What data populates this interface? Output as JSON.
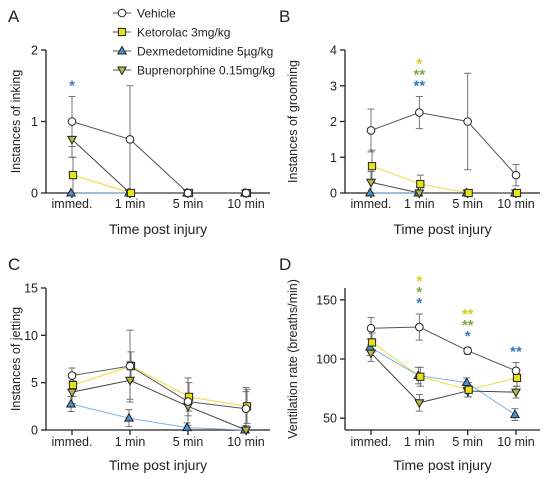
{
  "colors": {
    "vehicle": "#ffffff",
    "ketorolac": "#e8e21a",
    "dexmedetomidine": "#4a8fcc",
    "buprenorphine": "#b5b548",
    "star_yellow": "#d8d11c",
    "star_green": "#7fa641",
    "star_blue": "#3a78c0",
    "axis": "#222222",
    "error": "#666666"
  },
  "legend": [
    {
      "label": "Vehicle",
      "marker": "circle",
      "color": "#ffffff"
    },
    {
      "label": "Ketorolac 3mg/kg",
      "marker": "square",
      "color": "#e8e21a"
    },
    {
      "label": "Dexmedetomidine 5µg/kg",
      "marker": "triangle-up",
      "color": "#4a8fcc"
    },
    {
      "label": "Buprenorphine 0.15mg/kg",
      "marker": "triangle-down",
      "color": "#b5b548"
    }
  ],
  "chart_data": [
    {
      "panel": "A",
      "type": "line",
      "ylabel": "Instances of inking",
      "xlabel": "Time post injury",
      "categories": [
        "immed.",
        "1 min",
        "5 min",
        "10 min"
      ],
      "ylim": [
        0,
        2
      ],
      "yticks": [
        "0",
        "1",
        "2"
      ],
      "series": [
        {
          "name": "Vehicle",
          "values": [
            1.0,
            0.75,
            0,
            0
          ],
          "err": [
            0.35,
            0.75,
            0,
            0
          ]
        },
        {
          "name": "Ketorolac 3mg/kg",
          "values": [
            0.25,
            0,
            0,
            0
          ],
          "err": [
            0.25,
            0,
            0,
            0
          ]
        },
        {
          "name": "Dexmedetomidine 5µg/kg",
          "values": [
            0,
            0,
            0,
            0
          ],
          "err": [
            0,
            0,
            0,
            0
          ]
        },
        {
          "name": "Buprenorphine 0.15mg/kg",
          "values": [
            0.75,
            0,
            0,
            0
          ],
          "err": [
            0.25,
            0,
            0,
            0
          ]
        }
      ],
      "annotations": [
        {
          "category": "immed.",
          "stars": [
            {
              "text": "*",
              "color": "#3a78c0"
            }
          ]
        }
      ]
    },
    {
      "panel": "B",
      "type": "line",
      "ylabel": "Instances of grooming",
      "xlabel": "Time post injury",
      "categories": [
        "immed.",
        "1 min",
        "5 min",
        "10 min"
      ],
      "ylim": [
        0,
        4
      ],
      "yticks": [
        "0",
        "1",
        "2",
        "3",
        "4"
      ],
      "series": [
        {
          "name": "Vehicle",
          "values": [
            1.75,
            2.25,
            2.0,
            0.5
          ],
          "err": [
            0.6,
            0.45,
            1.35,
            0.3
          ]
        },
        {
          "name": "Ketorolac 3mg/kg",
          "values": [
            0.75,
            0.25,
            0,
            0
          ],
          "err": [
            0.45,
            0.25,
            0,
            0
          ]
        },
        {
          "name": "Dexmedetomidine 5µg/kg",
          "values": [
            0,
            0,
            0,
            0
          ],
          "err": [
            0,
            0,
            0,
            0
          ]
        },
        {
          "name": "Buprenorphine 0.15mg/kg",
          "values": [
            0.3,
            0,
            0,
            0
          ],
          "err": [
            0.3,
            0,
            0,
            0
          ]
        }
      ],
      "annotations": [
        {
          "category": "1 min",
          "stars": [
            {
              "text": "*",
              "color": "#d8d11c"
            },
            {
              "text": "**",
              "color": "#7fa641"
            },
            {
              "text": "**",
              "color": "#3a78c0"
            }
          ]
        }
      ]
    },
    {
      "panel": "C",
      "type": "line",
      "ylabel": "Instances of jetting",
      "xlabel": "Time post injury",
      "categories": [
        "immed.",
        "1 min",
        "5 min",
        "10 min"
      ],
      "ylim": [
        0,
        15
      ],
      "yticks": [
        "0",
        "5",
        "10",
        "15"
      ],
      "series": [
        {
          "name": "Vehicle",
          "values": [
            5.75,
            6.75,
            3.0,
            2.25
          ],
          "err": [
            0.8,
            3.8,
            2.5,
            1.8
          ]
        },
        {
          "name": "Ketorolac 3mg/kg",
          "values": [
            4.75,
            6.75,
            3.5,
            2.5
          ],
          "err": [
            1.2,
            1.5,
            1.5,
            1.8
          ]
        },
        {
          "name": "Dexmedetomidine 5µg/kg",
          "values": [
            2.75,
            1.25,
            0.25,
            0
          ],
          "err": [
            0.8,
            0.9,
            0.5,
            0
          ]
        },
        {
          "name": "Buprenorphine 0.15mg/kg",
          "values": [
            4.0,
            5.25,
            2.5,
            0
          ],
          "err": [
            1.2,
            2.0,
            1.0,
            4.5
          ]
        }
      ],
      "annotations": []
    },
    {
      "panel": "D",
      "type": "line",
      "ylabel": "Ventilation rate (breaths/min)",
      "xlabel": "Time post injury",
      "categories": [
        "immed.",
        "1 min",
        "5 min",
        "10 min"
      ],
      "ylim": [
        40,
        160
      ],
      "yticks": [
        "50",
        "100",
        "150"
      ],
      "series": [
        {
          "name": "Vehicle",
          "values": [
            126,
            127,
            107,
            90
          ],
          "err": [
            9,
            11,
            3,
            7
          ]
        },
        {
          "name": "Ketorolac 3mg/kg",
          "values": [
            114,
            85,
            74,
            84
          ],
          "err": [
            8,
            8,
            6,
            7
          ]
        },
        {
          "name": "Dexmedetomidine 5µg/kg",
          "values": [
            110,
            86,
            80,
            53
          ],
          "err": [
            7,
            7,
            4,
            5
          ]
        },
        {
          "name": "Buprenorphine 0.15mg/kg",
          "values": [
            105,
            63,
            73,
            72
          ],
          "err": [
            7,
            7,
            5,
            5
          ]
        }
      ],
      "annotations": [
        {
          "category": "1 min",
          "stars": [
            {
              "text": "*",
              "color": "#d8d11c"
            },
            {
              "text": "*",
              "color": "#7fa641"
            },
            {
              "text": "*",
              "color": "#3a78c0"
            }
          ]
        },
        {
          "category": "5 min",
          "stars": [
            {
              "text": "**",
              "color": "#d8d11c"
            },
            {
              "text": "**",
              "color": "#7fa641"
            },
            {
              "text": "*",
              "color": "#3a78c0"
            }
          ]
        },
        {
          "category": "10 min",
          "stars": [
            {
              "text": "**",
              "color": "#3a78c0"
            }
          ]
        }
      ]
    }
  ]
}
